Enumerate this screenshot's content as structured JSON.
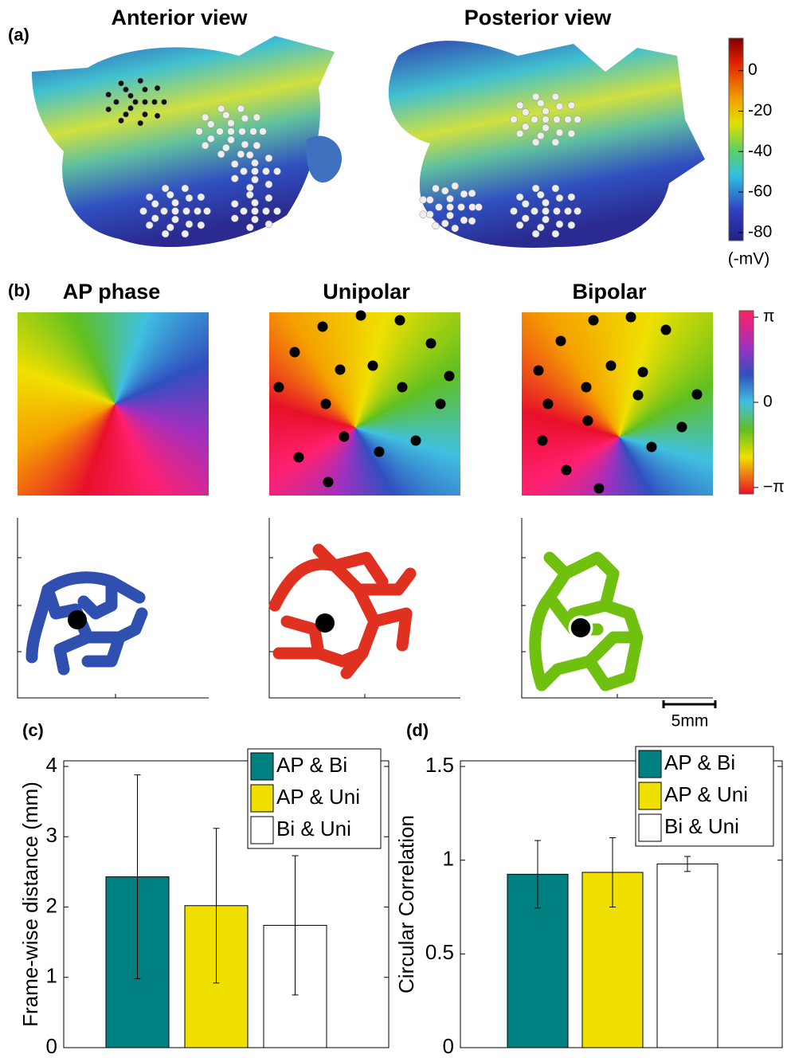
{
  "panel_a": {
    "label": "(a)",
    "views": [
      "Anterior view",
      "Posterior view"
    ],
    "colorbar": {
      "lim": [
        -84,
        16
      ],
      "ticks": [
        0,
        -20,
        -40,
        -60,
        -80
      ],
      "unit": "(-mV)"
    }
  },
  "panel_b": {
    "label": "(b)",
    "maps": [
      "AP phase",
      "Unipolar",
      "Bipolar"
    ],
    "colorbar": {
      "lim": [
        -3.38,
        3.38
      ],
      "ticks": [
        {
          "value": 3.1416,
          "label": "π"
        },
        0,
        {
          "value": -3.1416,
          "label": "−π"
        }
      ]
    },
    "scale_bar": "5mm"
  },
  "chart_data": [
    {
      "type": "bar",
      "panel_label": "(c)",
      "ylabel": "Frame-wise distance (mm)",
      "ylim": [
        0,
        4.08
      ],
      "yticks": [
        0,
        1,
        2,
        3,
        4
      ],
      "legend": "upper right",
      "series": [
        {
          "name": "AP & Bi",
          "color": "#008080",
          "values": [
            2.43
          ],
          "errors": [
            1.45
          ]
        },
        {
          "name": "AP & Uni",
          "color": "#f0e000",
          "values": [
            2.02
          ],
          "errors": [
            1.1
          ]
        },
        {
          "name": "Bi & Uni",
          "color": "#ffffff",
          "values": [
            1.74
          ],
          "errors": [
            0.99
          ]
        }
      ]
    },
    {
      "type": "bar",
      "panel_label": "(d)",
      "ylabel": "Circular Correlation",
      "ylim": [
        0,
        1.53
      ],
      "yticks": [
        0,
        0.5,
        1,
        1.5
      ],
      "legend": "upper right",
      "series": [
        {
          "name": "AP & Bi",
          "color": "#008080",
          "values": [
            0.925
          ],
          "errors": [
            0.18
          ]
        },
        {
          "name": "AP & Uni",
          "color": "#f0e000",
          "values": [
            0.935
          ],
          "errors": [
            0.185
          ]
        },
        {
          "name": "Bi & Uni",
          "color": "#ffffff",
          "values": [
            0.98
          ],
          "errors": [
            0.04
          ]
        }
      ]
    }
  ]
}
